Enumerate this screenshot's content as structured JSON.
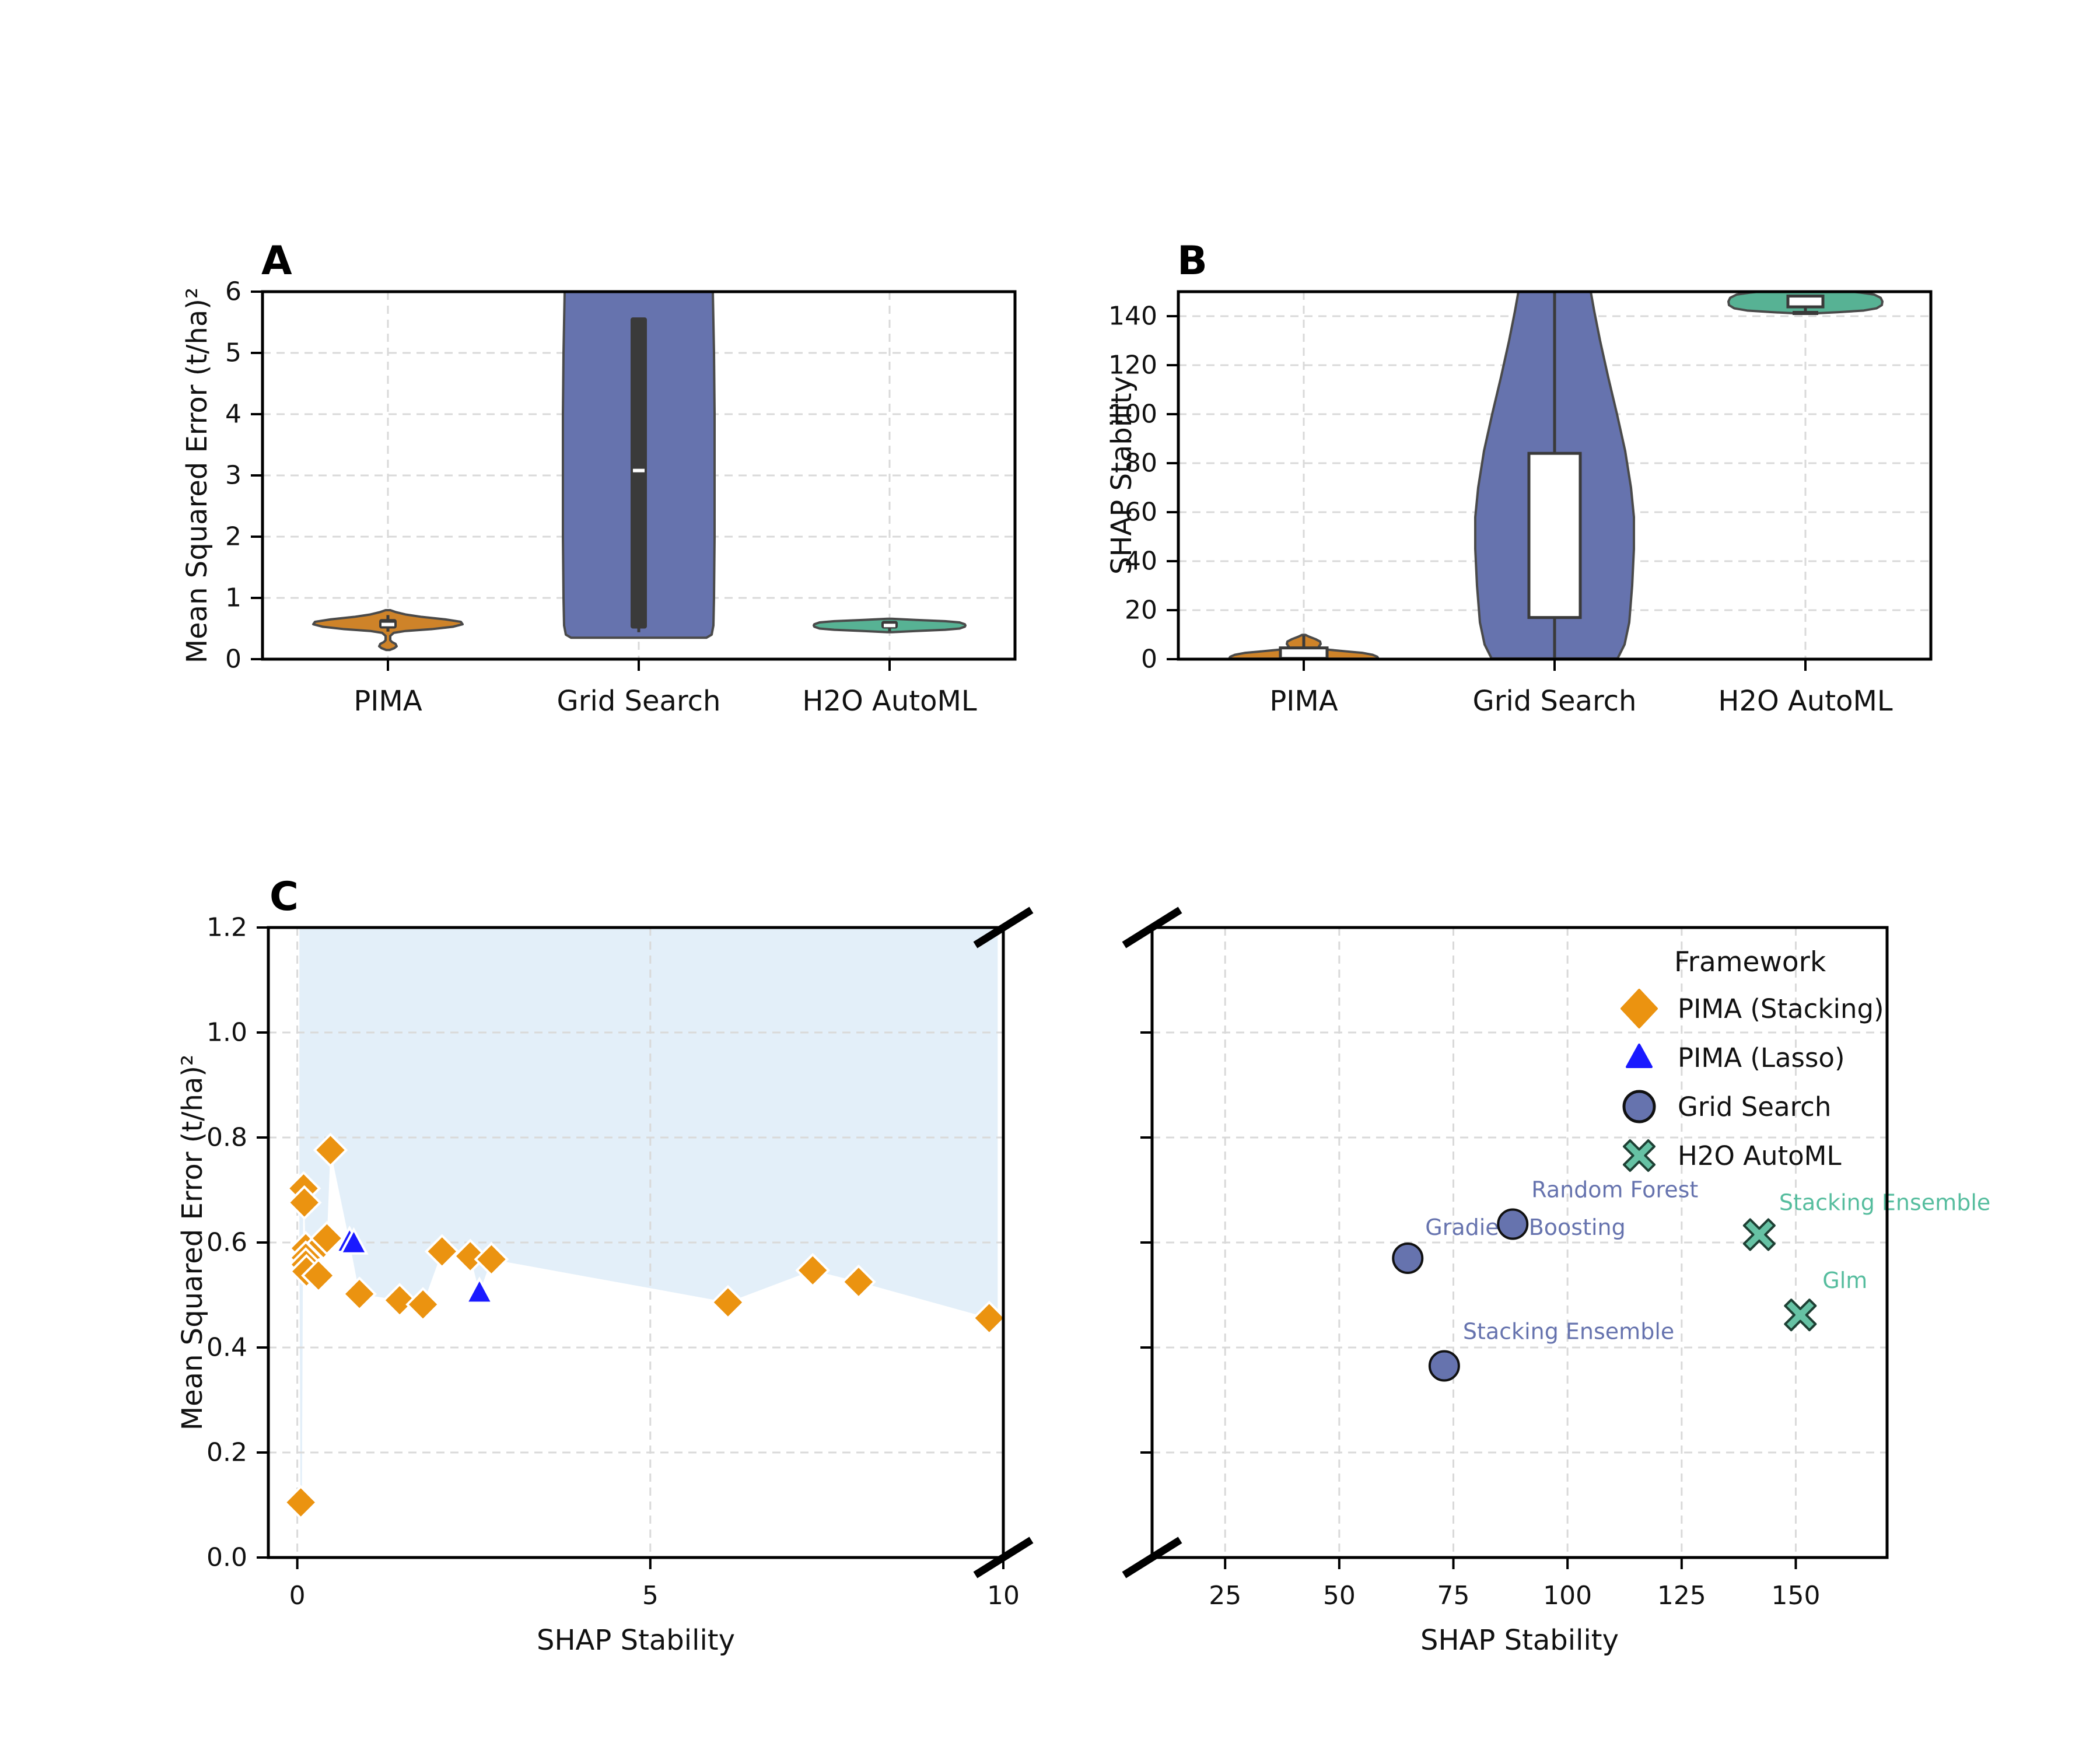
{
  "figure": {
    "panel_a_letter": "A",
    "panel_b_letter": "B",
    "panel_c_letter": "C",
    "colors": {
      "pima_violin": "#CE8329",
      "grid_violin": "#6673AE",
      "h2o_violin": "#57B294",
      "pima_stacking_marker": "#EB9310",
      "pima_lasso_marker": "#1A1AFF",
      "grid_marker": "#6673AE",
      "h2o_marker": "#66C2A4",
      "shaded_region": "#E3EFF9",
      "gridline": "#D9D9D9",
      "violin_edge": "#4A4A4A",
      "box_dark": "#3A3A3A",
      "grid_label_text": "#6673AE",
      "h2o_label_text": "#56BD9E"
    }
  },
  "legend": {
    "title": "Framework",
    "items": [
      {
        "label": "PIMA (Stacking)",
        "marker": "diamond",
        "color": "#EB9310",
        "edge": "#EB9310"
      },
      {
        "label": "PIMA (Lasso)",
        "marker": "triangle",
        "color": "#1A1AFF",
        "edge": "#1A1AFF"
      },
      {
        "label": "Grid Search",
        "marker": "circle",
        "color": "#6673AE",
        "edge": "#111111"
      },
      {
        "label": "H2O AutoML",
        "marker": "xmark",
        "color": "#66C2A4",
        "edge": "#1E4034"
      }
    ]
  },
  "chart_data": [
    {
      "id": "A",
      "type": "violin",
      "title": "",
      "ylabel": "Mean Squared Error (t/ha)²",
      "ylim": [
        0,
        6
      ],
      "yticks": [
        0,
        1,
        2,
        3,
        4,
        5,
        6
      ],
      "ytick_labels": [
        "0",
        "1",
        "2",
        "3",
        "4",
        "5",
        "6"
      ],
      "categories": [
        "PIMA",
        "Grid Search",
        "H2O AutoML"
      ],
      "series": [
        {
          "name": "PIMA",
          "color": "#CE8329",
          "profile": [
            [
              0.15,
              3
            ],
            [
              0.18,
              11
            ],
            [
              0.21,
              15
            ],
            [
              0.25,
              13
            ],
            [
              0.28,
              7
            ],
            [
              0.31,
              4
            ],
            [
              0.38,
              4
            ],
            [
              0.43,
              10
            ],
            [
              0.46,
              30
            ],
            [
              0.49,
              75
            ],
            [
              0.53,
              112
            ],
            [
              0.57,
              128
            ],
            [
              0.61,
              125
            ],
            [
              0.65,
              98
            ],
            [
              0.69,
              58
            ],
            [
              0.73,
              30
            ],
            [
              0.77,
              13
            ],
            [
              0.8,
              4
            ]
          ],
          "whisker": {
            "lo": 0.45,
            "hi": 0.72
          },
          "box": {
            "lo": 0.5,
            "hi": 0.655,
            "median": 0.565,
            "style": "dark",
            "hw": 15
          }
        },
        {
          "name": "Grid Search",
          "color": "#6673AE",
          "profile": [
            [
              0.35,
              116
            ],
            [
              0.4,
              125
            ],
            [
              0.55,
              128
            ],
            [
              1.0,
              129
            ],
            [
              2.0,
              130
            ],
            [
              3.0,
              130
            ],
            [
              4.0,
              130
            ],
            [
              5.0,
              129
            ],
            [
              5.5,
              128
            ],
            [
              6.0,
              127
            ]
          ],
          "whisker": {
            "lo": 0.44,
            "hi": 0.52
          },
          "box": {
            "lo": 0.5,
            "hi": 5.58,
            "median": 3.08,
            "style": "dark",
            "hw": 14
          },
          "summary_note": "violin clipped at y=6"
        },
        {
          "name": "H2O AutoML",
          "color": "#57B294",
          "profile": [
            [
              0.44,
              4
            ],
            [
              0.46,
              45
            ],
            [
              0.48,
              95
            ],
            [
              0.5,
              120
            ],
            [
              0.53,
              129
            ],
            [
              0.55,
              130
            ],
            [
              0.57,
              129
            ],
            [
              0.6,
              120
            ],
            [
              0.62,
              95
            ],
            [
              0.64,
              45
            ],
            [
              0.66,
              4
            ]
          ],
          "whisker": {
            "lo": 0.455,
            "hi": 0.52
          },
          "box": {
            "lo": 0.5,
            "hi": 0.625,
            "median": 0.55,
            "style": "dark",
            "hw": 14
          }
        }
      ]
    },
    {
      "id": "B",
      "type": "violin",
      "title": "",
      "ylabel": "SHAP Stability",
      "ylim": [
        0,
        150
      ],
      "yticks": [
        0,
        20,
        40,
        60,
        80,
        100,
        120,
        140
      ],
      "ytick_labels": [
        "0",
        "20",
        "40",
        "60",
        "80",
        "100",
        "120",
        "140"
      ],
      "categories": [
        "PIMA",
        "Grid Search",
        "H2O AutoML"
      ],
      "series": [
        {
          "name": "PIMA",
          "color": "#CE8329",
          "profile": [
            [
              0.2,
              128
            ],
            [
              1.0,
              126
            ],
            [
              1.8,
              118
            ],
            [
              2.6,
              100
            ],
            [
              3.2,
              72
            ],
            [
              3.8,
              45
            ],
            [
              4.4,
              30
            ],
            [
              5.2,
              26
            ],
            [
              6.2,
              29
            ],
            [
              7.2,
              28
            ],
            [
              8.2,
              20
            ],
            [
              9.2,
              9
            ],
            [
              9.9,
              3
            ]
          ],
          "whisker": {
            "lo": 4.6,
            "hi": 9.6
          },
          "box": {
            "lo": 0.3,
            "hi": 4.6,
            "style": "white",
            "hw": 40
          }
        },
        {
          "name": "Grid Search",
          "color": "#6673AE",
          "profile": [
            [
              0.3,
              108
            ],
            [
              6,
              120
            ],
            [
              15,
              128
            ],
            [
              30,
              133
            ],
            [
              45,
              136
            ],
            [
              58,
              136
            ],
            [
              70,
              131
            ],
            [
              85,
              121
            ],
            [
              100,
              107
            ],
            [
              115,
              92
            ],
            [
              130,
              78
            ],
            [
              142,
              68
            ],
            [
              150,
              62
            ]
          ],
          "whisker": {
            "lo": 0.5,
            "hi": 150
          },
          "box": {
            "lo": 17,
            "hi": 84,
            "style": "white",
            "hw": 44
          },
          "summary_note": "violin clipped at y=150"
        },
        {
          "name": "H2O AutoML",
          "color": "#57B294",
          "profile": [
            [
              141.0,
              4
            ],
            [
              141.6,
              55
            ],
            [
              142.3,
              100
            ],
            [
              143.2,
              122
            ],
            [
              144.5,
              131
            ],
            [
              146.0,
              132
            ],
            [
              147.5,
              129
            ],
            [
              148.8,
              118
            ],
            [
              149.6,
              95
            ],
            [
              150.0,
              80
            ]
          ],
          "whisker": {
            "lo": 141.3,
            "hi": 143.8,
            "cap": 141.3,
            "cap_hw": 22
          },
          "box": {
            "lo": 143.8,
            "hi": 148.2,
            "style": "white",
            "hw": 30
          },
          "summary_note": "violin clipped at y=150"
        }
      ]
    },
    {
      "id": "C-main",
      "type": "scatter",
      "xlabel": "SHAP Stability",
      "ylabel": "Mean Squared Error (t/ha)²",
      "xlim": [
        -0.41,
        10.0
      ],
      "xticks": [
        0,
        5,
        10
      ],
      "xtick_labels": [
        "0",
        "5",
        "10"
      ],
      "ylim": [
        0,
        1.2
      ],
      "yticks": [
        0.0,
        0.2,
        0.4,
        0.6,
        0.8,
        1.0,
        1.2
      ],
      "ytick_labels": [
        "0.0",
        "0.2",
        "0.4",
        "0.6",
        "0.8",
        "1.0",
        "1.2"
      ],
      "shaded_region_boundary": [
        [
          0.03,
          1.2
        ],
        [
          0.03,
          0.62
        ],
        [
          0.045,
          0.105
        ],
        [
          0.065,
          0.105
        ],
        [
          0.085,
          0.703
        ],
        [
          0.1,
          0.676
        ],
        [
          0.115,
          0.589
        ],
        [
          0.12,
          0.571
        ],
        [
          0.125,
          0.558
        ],
        [
          0.13,
          0.545
        ],
        [
          0.3,
          0.537
        ],
        [
          0.37,
          0.599
        ],
        [
          0.42,
          0.608
        ],
        [
          0.47,
          0.776
        ],
        [
          0.74,
          0.601
        ],
        [
          0.88,
          0.502
        ],
        [
          1.45,
          0.49
        ],
        [
          1.78,
          0.482
        ],
        [
          2.05,
          0.583
        ],
        [
          2.45,
          0.574
        ],
        [
          2.58,
          0.504
        ],
        [
          2.75,
          0.568
        ],
        [
          6.1,
          0.486
        ],
        [
          7.3,
          0.547
        ],
        [
          7.95,
          0.525
        ],
        [
          9.8,
          0.456
        ],
        [
          9.92,
          0.46
        ],
        [
          9.92,
          1.2
        ]
      ],
      "series": [
        {
          "name": "PIMA (Stacking)",
          "marker": "diamond",
          "color": "#EB9310",
          "edge": "#FFFFFF",
          "points": [
            [
              0.05,
              0.105
            ],
            [
              0.09,
              0.703
            ],
            [
              0.1,
              0.676
            ],
            [
              0.12,
              0.589
            ],
            [
              0.12,
              0.571
            ],
            [
              0.12,
              0.558
            ],
            [
              0.13,
              0.545
            ],
            [
              0.3,
              0.537
            ],
            [
              0.37,
              0.599
            ],
            [
              0.42,
              0.608
            ],
            [
              0.47,
              0.776
            ],
            [
              0.88,
              0.502
            ],
            [
              1.45,
              0.49
            ],
            [
              1.78,
              0.482
            ],
            [
              2.05,
              0.583
            ],
            [
              2.45,
              0.574
            ],
            [
              2.75,
              0.568
            ],
            [
              6.1,
              0.486
            ],
            [
              7.3,
              0.547
            ],
            [
              7.95,
              0.525
            ],
            [
              9.8,
              0.456
            ]
          ]
        },
        {
          "name": "PIMA (Lasso)",
          "marker": "triangle",
          "color": "#1A1AFF",
          "edge": "#FFFFFF",
          "points": [
            [
              0.74,
              0.601
            ],
            [
              0.8,
              0.598
            ],
            [
              2.58,
              0.504
            ]
          ]
        }
      ]
    },
    {
      "id": "C-zoom",
      "type": "scatter",
      "xlabel": "SHAP Stability",
      "xlim": [
        9,
        170
      ],
      "xticks": [
        25,
        50,
        75,
        100,
        125,
        150
      ],
      "xtick_labels": [
        "25",
        "50",
        "75",
        "100",
        "125",
        "150"
      ],
      "ylim": [
        0,
        1.2
      ],
      "yticks": [
        0.2,
        0.4,
        0.6,
        0.8,
        1.0
      ],
      "ytick_labels": [],
      "series": [
        {
          "name": "Grid Search",
          "marker": "circle",
          "color": "#6673AE",
          "edge": "#111111",
          "label_color": "#6673AE",
          "points": [
            [
              65,
              0.57
            ],
            [
              88,
              0.635
            ],
            [
              73,
              0.365
            ]
          ],
          "point_labels": [
            "Gradient Boosting",
            "Random Forest",
            "Stacking Ensemble"
          ],
          "label_offsets": [
            [
              30,
              -40
            ],
            [
              32,
              -46
            ],
            [
              32,
              -46
            ]
          ]
        },
        {
          "name": "H2O AutoML",
          "marker": "xmark",
          "color": "#66C2A4",
          "edge": "#1E4034",
          "label_color": "#56BD9E",
          "points": [
            [
              142,
              0.615
            ],
            [
              151,
              0.462
            ]
          ],
          "point_labels": [
            "Stacking Ensemble",
            "Glm"
          ],
          "label_offsets": [
            [
              34,
              -42
            ],
            [
              38,
              -46
            ]
          ]
        }
      ]
    }
  ]
}
